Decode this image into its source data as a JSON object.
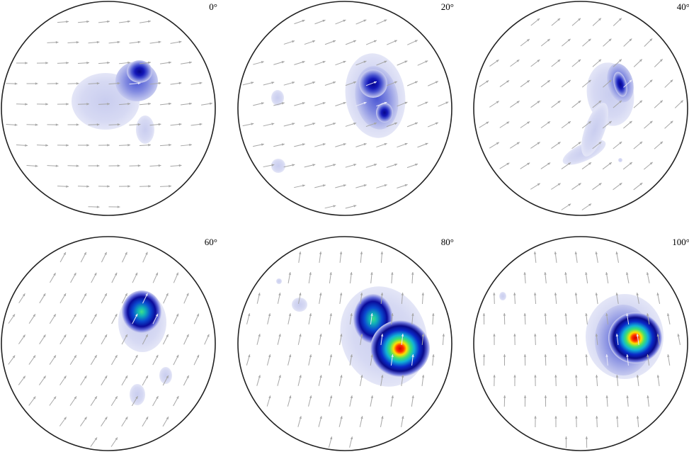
{
  "panels": [
    {
      "label": "0°"
    },
    {
      "label": "20°"
    },
    {
      "label": "40°"
    },
    {
      "label": "60°"
    },
    {
      "label": "80°"
    },
    {
      "label": "100°"
    }
  ]
}
